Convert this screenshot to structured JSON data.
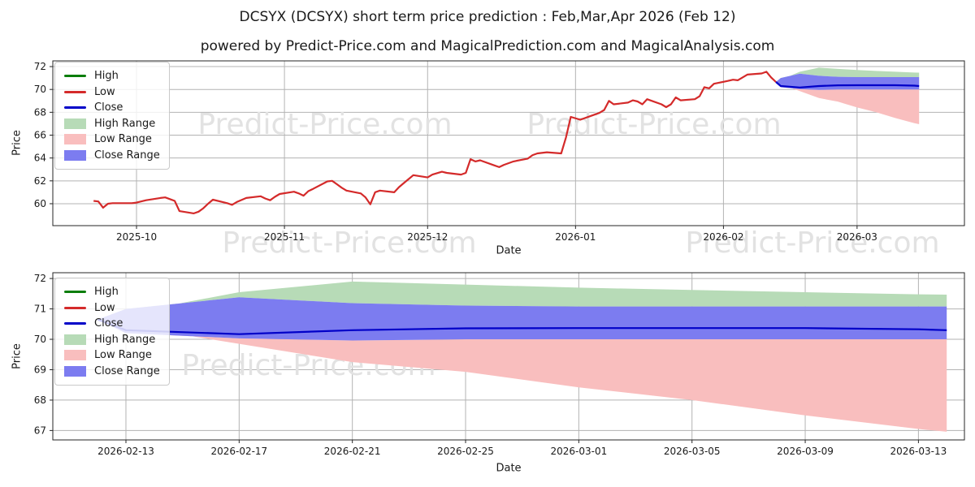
{
  "title": "DCSYX (DCSYX) short term price prediction : Feb,Mar,Apr 2026 (Feb 12)",
  "subtitle": "powered by Predict-Price.com and MagicalPrediction.com and MagicalAnalysis.com",
  "watermark": "Predict-Price.com",
  "colors": {
    "high_line": "#0a7d0a",
    "low_line": "#d42a2a",
    "close_line": "#0000c8",
    "high_range": "#b7dbb7",
    "low_range": "#f9bebe",
    "close_range": "#7c7cf0",
    "grid": "#b3b3b3",
    "spine": "#262626",
    "watermark_color": "#e2e2e2",
    "text": "#1a1a1a"
  },
  "legend": {
    "items": [
      {
        "label": "High",
        "type": "line",
        "color": "#0a7d0a"
      },
      {
        "label": "Low",
        "type": "line",
        "color": "#d42a2a"
      },
      {
        "label": "Close",
        "type": "line",
        "color": "#0000c8"
      },
      {
        "label": "High Range",
        "type": "patch",
        "color": "#b7dbb7"
      },
      {
        "label": "Low Range",
        "type": "patch",
        "color": "#f9bebe"
      },
      {
        "label": "Close Range",
        "type": "patch",
        "color": "#7c7cf0"
      }
    ]
  },
  "chart_data": [
    {
      "type": "line",
      "name": "history-and-forecast",
      "xlabel": "Date",
      "ylabel": "Price",
      "ylim": [
        58.08,
        72.5
      ],
      "xlim": [
        "2025-09-13T11:00",
        "2026-03-23T12:00"
      ],
      "yticks": [
        60,
        62,
        64,
        66,
        68,
        70,
        72
      ],
      "xticks": [
        {
          "date": "2025-10-01",
          "label": "2025-10"
        },
        {
          "date": "2025-11-01",
          "label": "2025-11"
        },
        {
          "date": "2025-12-01",
          "label": "2025-12"
        },
        {
          "date": "2026-01-01",
          "label": "2026-01"
        },
        {
          "date": "2026-02-01",
          "label": "2026-02"
        },
        {
          "date": "2026-03-01",
          "label": "2026-03"
        }
      ],
      "series": [
        {
          "name": "Low",
          "color": "#d42a2a",
          "points": [
            [
              "2025-09-22",
              60.25
            ],
            [
              "2025-09-23",
              60.2
            ],
            [
              "2025-09-24",
              59.65
            ],
            [
              "2025-09-25",
              60.0
            ],
            [
              "2025-09-26",
              60.05
            ],
            [
              "2025-09-29",
              60.05
            ],
            [
              "2025-09-30",
              60.05
            ],
            [
              "2025-10-01",
              60.1
            ],
            [
              "2025-10-03",
              60.3
            ],
            [
              "2025-10-06",
              60.5
            ],
            [
              "2025-10-07",
              60.55
            ],
            [
              "2025-10-08",
              60.4
            ],
            [
              "2025-10-09",
              60.25
            ],
            [
              "2025-10-10",
              59.35
            ],
            [
              "2025-10-13",
              59.15
            ],
            [
              "2025-10-14",
              59.3
            ],
            [
              "2025-10-15",
              59.6
            ],
            [
              "2025-10-16",
              60.0
            ],
            [
              "2025-10-17",
              60.35
            ],
            [
              "2025-10-20",
              60.05
            ],
            [
              "2025-10-21",
              59.9
            ],
            [
              "2025-10-22",
              60.15
            ],
            [
              "2025-10-24",
              60.5
            ],
            [
              "2025-10-27",
              60.65
            ],
            [
              "2025-10-28",
              60.45
            ],
            [
              "2025-10-29",
              60.3
            ],
            [
              "2025-10-30",
              60.6
            ],
            [
              "2025-10-31",
              60.85
            ],
            [
              "2025-11-03",
              61.05
            ],
            [
              "2025-11-04",
              60.9
            ],
            [
              "2025-11-05",
              60.7
            ],
            [
              "2025-11-06",
              61.1
            ],
            [
              "2025-11-07",
              61.3
            ],
            [
              "2025-11-10",
              61.95
            ],
            [
              "2025-11-11",
              62.0
            ],
            [
              "2025-11-12",
              61.7
            ],
            [
              "2025-11-13",
              61.4
            ],
            [
              "2025-11-14",
              61.15
            ],
            [
              "2025-11-17",
              60.9
            ],
            [
              "2025-11-18",
              60.55
            ],
            [
              "2025-11-19",
              59.95
            ],
            [
              "2025-11-20",
              61.0
            ],
            [
              "2025-11-21",
              61.15
            ],
            [
              "2025-11-24",
              61.0
            ],
            [
              "2025-11-25",
              61.45
            ],
            [
              "2025-11-26",
              61.8
            ],
            [
              "2025-11-28",
              62.5
            ],
            [
              "2025-12-01",
              62.3
            ],
            [
              "2025-12-02",
              62.55
            ],
            [
              "2025-12-04",
              62.8
            ],
            [
              "2025-12-05",
              62.7
            ],
            [
              "2025-12-08",
              62.55
            ],
            [
              "2025-12-09",
              62.7
            ],
            [
              "2025-12-10",
              63.9
            ],
            [
              "2025-12-11",
              63.7
            ],
            [
              "2025-12-12",
              63.8
            ],
            [
              "2025-12-15",
              63.35
            ],
            [
              "2025-12-16",
              63.2
            ],
            [
              "2025-12-17",
              63.4
            ],
            [
              "2025-12-19",
              63.7
            ],
            [
              "2025-12-22",
              63.95
            ],
            [
              "2025-12-23",
              64.25
            ],
            [
              "2025-12-24",
              64.4
            ],
            [
              "2025-12-26",
              64.5
            ],
            [
              "2025-12-29",
              64.4
            ],
            [
              "2025-12-30",
              65.8
            ],
            [
              "2025-12-31",
              67.6
            ],
            [
              "2026-01-02",
              67.35
            ],
            [
              "2026-01-05",
              67.8
            ],
            [
              "2026-01-06",
              67.95
            ],
            [
              "2026-01-07",
              68.2
            ],
            [
              "2026-01-08",
              69.0
            ],
            [
              "2026-01-09",
              68.7
            ],
            [
              "2026-01-12",
              68.85
            ],
            [
              "2026-01-13",
              69.05
            ],
            [
              "2026-01-14",
              68.95
            ],
            [
              "2026-01-15",
              68.7
            ],
            [
              "2026-01-16",
              69.15
            ],
            [
              "2026-01-19",
              68.7
            ],
            [
              "2026-01-20",
              68.45
            ],
            [
              "2026-01-21",
              68.7
            ],
            [
              "2026-01-22",
              69.3
            ],
            [
              "2026-01-23",
              69.05
            ],
            [
              "2026-01-26",
              69.15
            ],
            [
              "2026-01-27",
              69.4
            ],
            [
              "2026-01-28",
              70.2
            ],
            [
              "2026-01-29",
              70.1
            ],
            [
              "2026-01-30",
              70.5
            ],
            [
              "2026-02-02",
              70.75
            ],
            [
              "2026-02-03",
              70.85
            ],
            [
              "2026-02-04",
              70.8
            ],
            [
              "2026-02-05",
              71.05
            ],
            [
              "2026-02-06",
              71.3
            ],
            [
              "2026-02-09",
              71.4
            ],
            [
              "2026-02-10",
              71.55
            ],
            [
              "2026-02-11",
              71.05
            ],
            [
              "2026-02-12",
              70.65
            ]
          ]
        }
      ],
      "forecast": {
        "dates": [
          "2026-02-12",
          "2026-02-13",
          "2026-02-17",
          "2026-02-21",
          "2026-02-25",
          "2026-03-01",
          "2026-03-05",
          "2026-03-09",
          "2026-03-13",
          "2026-03-14"
        ],
        "close": [
          70.65,
          70.3,
          70.17,
          70.3,
          70.36,
          70.37,
          70.37,
          70.37,
          70.33,
          70.3
        ],
        "high_range_upper": [
          70.65,
          70.85,
          71.55,
          71.9,
          71.8,
          71.7,
          71.62,
          71.55,
          71.48,
          71.47
        ],
        "close_range_upper": [
          70.65,
          71.0,
          71.38,
          71.19,
          71.11,
          71.08,
          71.08,
          71.08,
          71.08,
          71.08
        ],
        "close_range_lower": [
          70.65,
          70.2,
          70.03,
          69.96,
          70.0,
          70.0,
          70.0,
          70.0,
          70.0,
          70.0
        ],
        "low_range_lower": [
          70.65,
          70.45,
          69.85,
          69.25,
          68.93,
          68.42,
          68.0,
          67.5,
          67.05,
          66.96
        ]
      }
    },
    {
      "type": "area",
      "name": "forecast-zoom",
      "xlabel": "Date",
      "ylabel": "Price",
      "ylim": [
        66.69,
        72.19
      ],
      "xlim": [
        "2026-02-10T10:00",
        "2026-03-14T15:00"
      ],
      "yticks": [
        67,
        68,
        69,
        70,
        71,
        72
      ],
      "xticks": [
        {
          "date": "2026-02-13",
          "label": "2026-02-13"
        },
        {
          "date": "2026-02-17",
          "label": "2026-02-17"
        },
        {
          "date": "2026-02-21",
          "label": "2026-02-21"
        },
        {
          "date": "2026-02-25",
          "label": "2026-02-25"
        },
        {
          "date": "2026-03-01",
          "label": "2026-03-01"
        },
        {
          "date": "2026-03-05",
          "label": "2026-03-05"
        },
        {
          "date": "2026-03-09",
          "label": "2026-03-09"
        },
        {
          "date": "2026-03-13",
          "label": "2026-03-13"
        }
      ],
      "series": [],
      "forecast": {
        "dates": [
          "2026-02-12",
          "2026-02-13",
          "2026-02-17",
          "2026-02-21",
          "2026-02-25",
          "2026-03-01",
          "2026-03-05",
          "2026-03-09",
          "2026-03-13",
          "2026-03-14"
        ],
        "close": [
          70.65,
          70.3,
          70.17,
          70.3,
          70.36,
          70.37,
          70.37,
          70.37,
          70.33,
          70.3
        ],
        "high_range_upper": [
          70.65,
          70.85,
          71.55,
          71.9,
          71.8,
          71.7,
          71.62,
          71.55,
          71.48,
          71.47
        ],
        "close_range_upper": [
          70.65,
          71.0,
          71.38,
          71.19,
          71.11,
          71.08,
          71.08,
          71.08,
          71.08,
          71.08
        ],
        "close_range_lower": [
          70.65,
          70.2,
          70.03,
          69.96,
          70.0,
          70.0,
          70.0,
          70.0,
          70.0,
          70.0
        ],
        "low_range_lower": [
          70.65,
          70.45,
          69.85,
          69.25,
          68.93,
          68.42,
          68.0,
          67.5,
          67.05,
          66.96
        ]
      }
    }
  ]
}
